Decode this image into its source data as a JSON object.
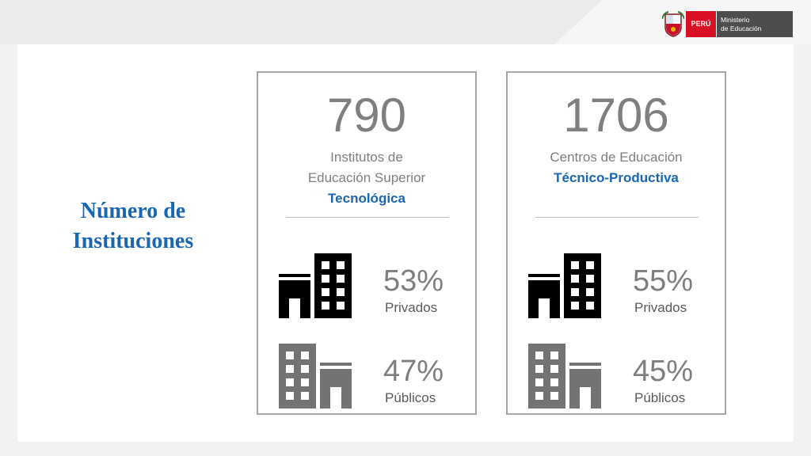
{
  "header": {
    "country": "PERÚ",
    "ministry_line1": "Ministerio",
    "ministry_line2": "de Educación"
  },
  "side_title": {
    "line1": "Número de",
    "line2": "Instituciones"
  },
  "cards": [
    {
      "total": "790",
      "desc_line1": "Institutos de",
      "desc_line2": "Educación Superior",
      "highlight": "Tecnológica",
      "private_pct": "53%",
      "private_label": "Privados",
      "public_pct": "47%",
      "public_label": "Públicos"
    },
    {
      "total": "1706",
      "desc_line1": "Centros de Educación",
      "highlight": "Técnico-Productiva",
      "private_pct": "55%",
      "private_label": "Privados",
      "public_pct": "45%",
      "public_label": "Públicos"
    }
  ],
  "colors": {
    "accent_blue": "#1a66b0",
    "private_icon": "#000000",
    "public_icon": "#737373",
    "peru_red": "#d91023"
  },
  "icons": {
    "private": "buildings-icon",
    "public": "buildings-icon"
  }
}
